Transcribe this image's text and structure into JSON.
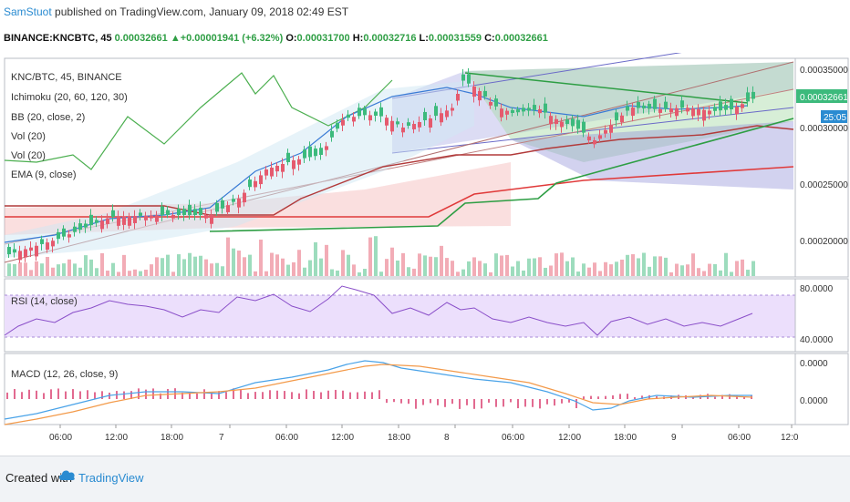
{
  "header": {
    "publisher": "SamStuot",
    "published_text": "published on TradingView.com, January 09, 2018 02:49 EST",
    "symbol": "BINANCE:KNCBTC, 45",
    "last": "0.00032661",
    "change_icon": "up-triangle-icon",
    "change": "+0.00001941 (+6.32%)",
    "o_label": "O:",
    "o": "0.00031700",
    "h_label": "H:",
    "h": "0.00032716",
    "l_label": "L:",
    "l": "0.00031559",
    "c_label": "C:",
    "c": "0.00032661"
  },
  "legend": {
    "title": "KNC/BTC, 45, BINANCE",
    "items": [
      "Ichimoku (20, 60, 120, 30)",
      "BB (20, close, 2)",
      "Vol (20)",
      "Vol (20)",
      "EMA (9, close)"
    ]
  },
  "price_axis": {
    "ticks": [
      "0.00035000",
      "0.00030000",
      "0.00025000",
      "0.00020000"
    ],
    "current_price": "0.00032661",
    "countdown": "25:05"
  },
  "rsi": {
    "label": "RSI (14, close)",
    "ticks": [
      "80.0000",
      "40.0000"
    ]
  },
  "macd": {
    "label": "MACD (12, 26, close, 9)",
    "ticks": [
      "0.0000",
      "0.0000"
    ]
  },
  "time_axis": [
    "06:00",
    "12:00",
    "18:00",
    "7",
    "06:00",
    "12:00",
    "18:00",
    "8",
    "06:00",
    "12:00",
    "18:00",
    "9",
    "06:00",
    "12:0"
  ],
  "colors": {
    "bull": "#3cba7c",
    "bear": "#e55a6e",
    "ema": "#d33b3b",
    "rsi_bg": "#ecdffc",
    "accent": "#2a8bd1"
  },
  "footer": {
    "created_with": "Created with",
    "brand": "TradingView",
    "logo_icon": "tradingview-cloud-icon"
  }
}
